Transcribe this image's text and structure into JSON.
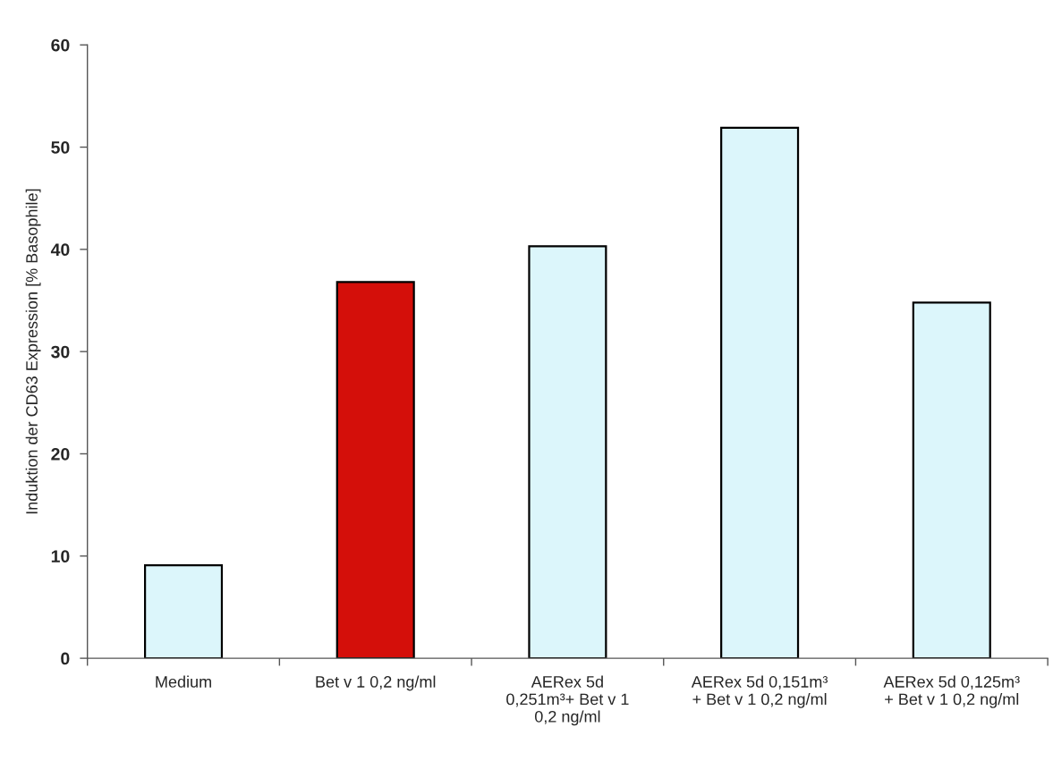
{
  "chart_data": {
    "type": "bar",
    "ylabel": "Induktion der CD63 Expression [% Basophile]",
    "categories": [
      "Medium",
      "Bet v 1 0,2 ng/ml",
      "AERex 5d\n0,251m³+ Bet v 1\n0,2 ng/ml",
      "AERex 5d 0,151m³\n+ Bet v 1 0,2 ng/ml",
      "AERex 5d 0,125m³\n+ Bet v 1 0,2 ng/ml"
    ],
    "values": [
      9.1,
      36.8,
      40.3,
      51.9,
      34.8
    ],
    "colors": [
      "#dcf6fb",
      "#d40f0a",
      "#dcf6fb",
      "#dcf6fb",
      "#dcf6fb"
    ],
    "ylim": [
      0,
      60
    ],
    "yticks": [
      0,
      10,
      20,
      30,
      40,
      50,
      60
    ],
    "grid": false
  }
}
